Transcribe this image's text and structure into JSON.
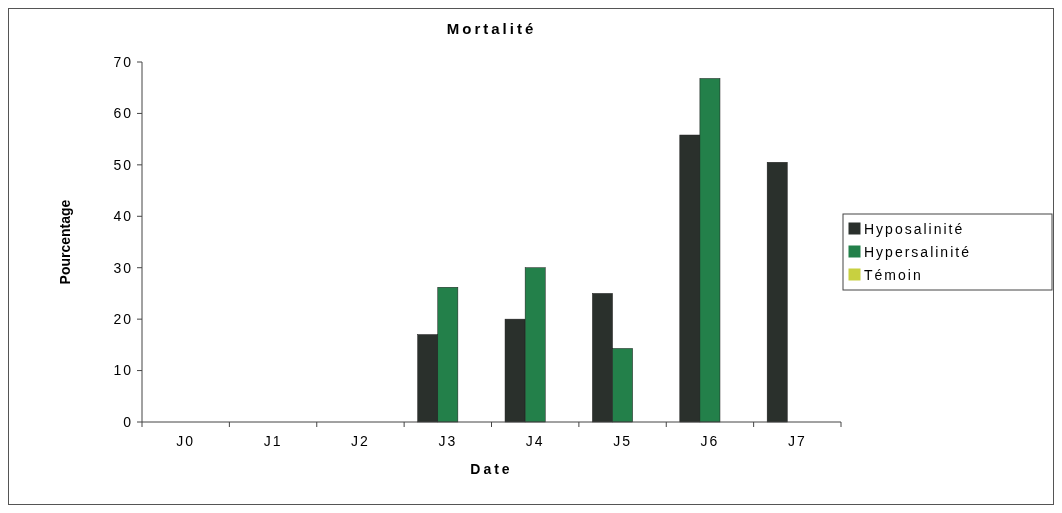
{
  "chart_data": {
    "type": "bar",
    "title": "Mortalité",
    "xlabel": "Date",
    "ylabel": "Pourcentage",
    "categories": [
      "J0",
      "J1",
      "J2",
      "J3",
      "J4",
      "J5",
      "J6",
      "J7"
    ],
    "series": [
      {
        "name": "Hyposalinité",
        "color": "#2a302c",
        "values": [
          0,
          0,
          0,
          17,
          20,
          25,
          55.8,
          50.5
        ]
      },
      {
        "name": "Hypersalinité",
        "color": "#23804a",
        "values": [
          0,
          0,
          0,
          26.2,
          30,
          14.3,
          66.8,
          0
        ]
      },
      {
        "name": "Témoin",
        "color": "#c8d040",
        "values": [
          0,
          0,
          0,
          0,
          0,
          0,
          0,
          0
        ]
      }
    ],
    "ylim": [
      0,
      70
    ],
    "yticks": [
      0,
      10,
      20,
      30,
      40,
      50,
      60,
      70
    ],
    "grid": false,
    "legend": "right"
  }
}
